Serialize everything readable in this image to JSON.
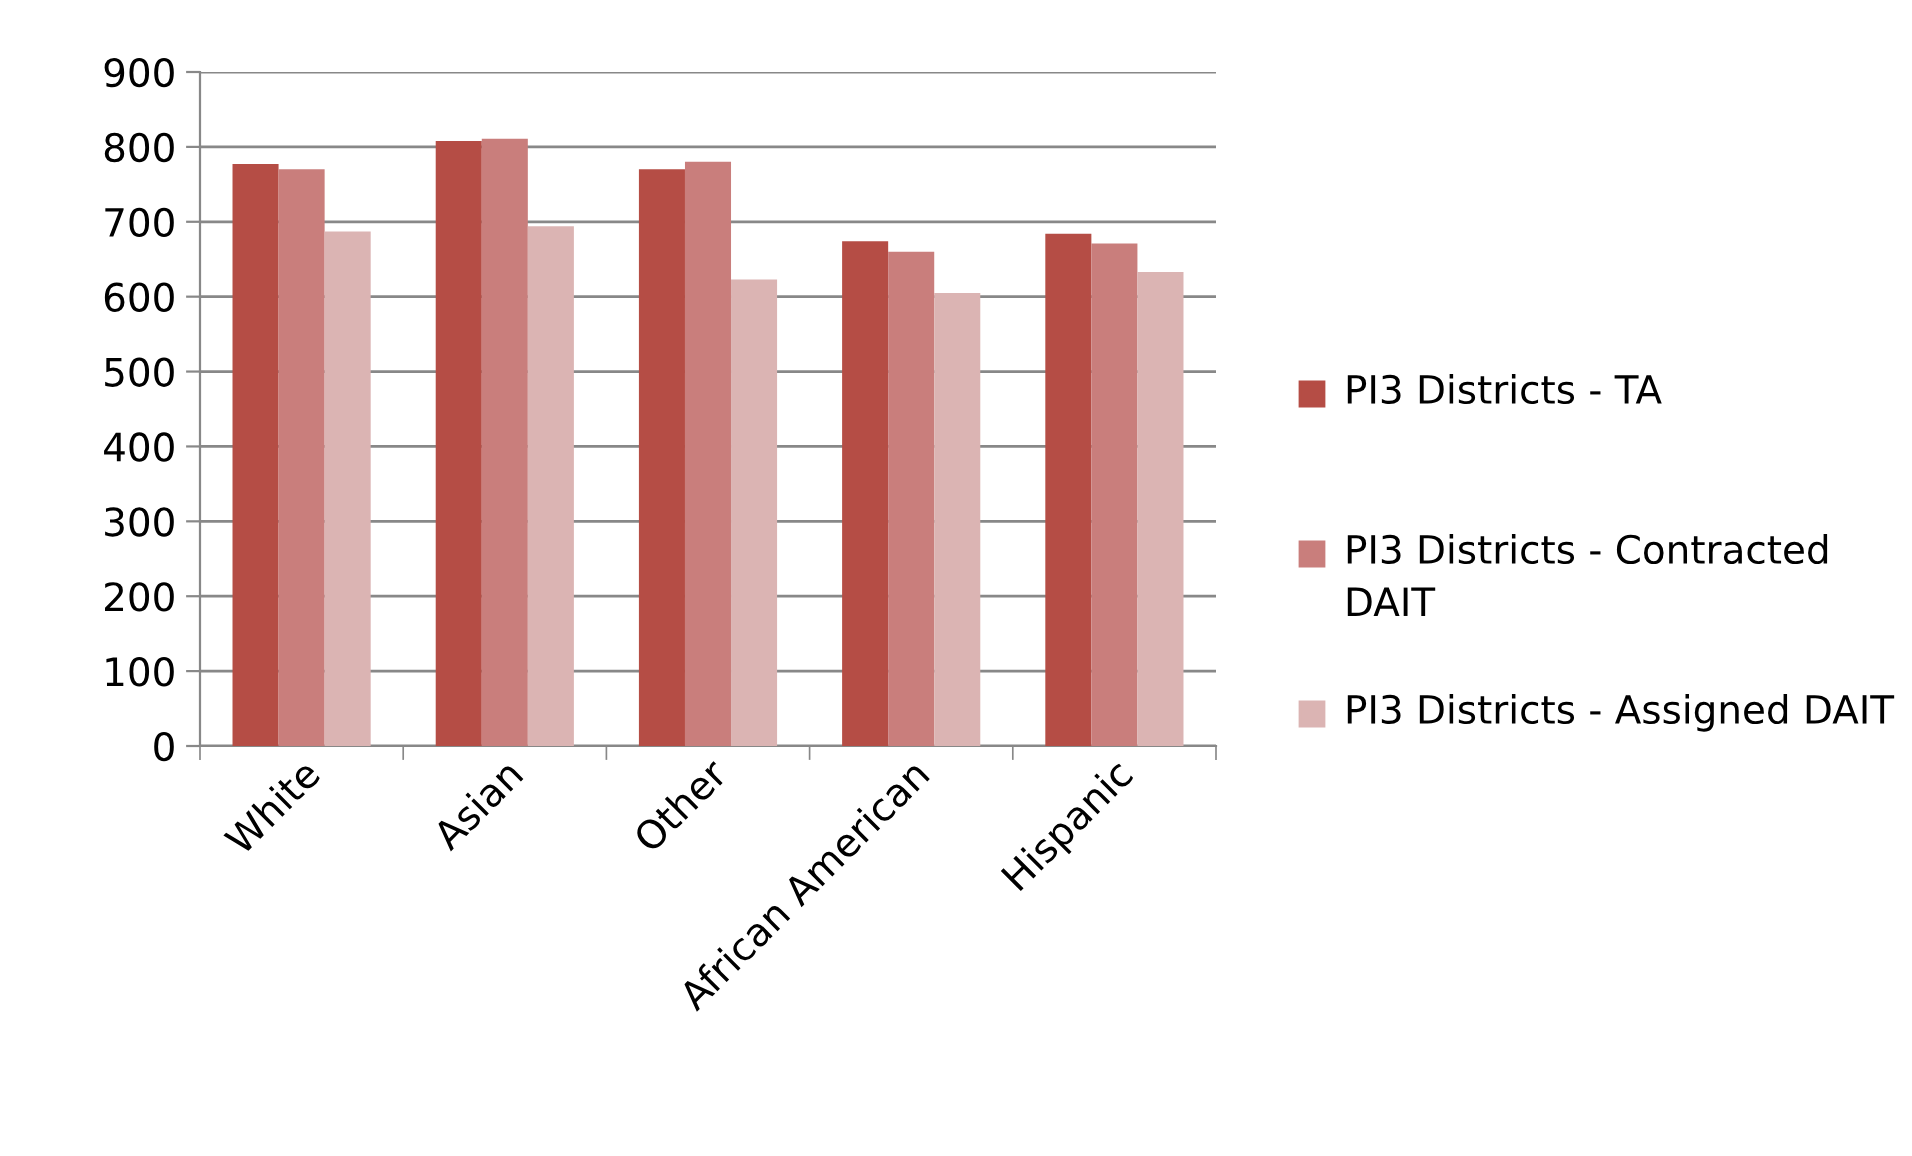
{
  "chart_data": {
    "type": "bar",
    "categories": [
      "White",
      "Asian",
      "Other",
      "African American",
      "Hispanic"
    ],
    "series": [
      {
        "name": "PI3 Districts - TA",
        "color": "#b54d45",
        "values": [
          777,
          808,
          770,
          674,
          684
        ]
      },
      {
        "name": "PI3 Districts - Contracted DAIT",
        "color": "#c97e7c",
        "values": [
          770,
          811,
          780,
          660,
          671
        ]
      },
      {
        "name": "PI3 Districts - Assigned DAIT",
        "color": "#dbb4b3",
        "values": [
          687,
          694,
          623,
          605,
          633
        ]
      }
    ],
    "ylim": [
      0,
      900
    ],
    "yticks": [
      0,
      100,
      200,
      300,
      400,
      500,
      600,
      700,
      800,
      900
    ],
    "grid": "y",
    "legend": "right"
  }
}
